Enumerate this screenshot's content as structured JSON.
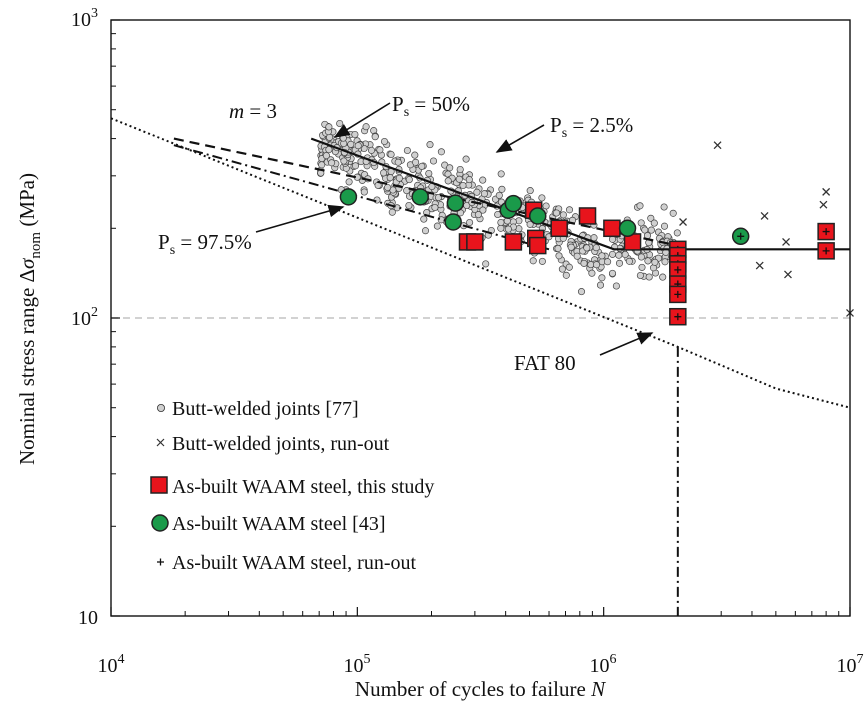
{
  "chart_data": {
    "type": "scatter",
    "x_scale": "log",
    "y_scale": "log",
    "xlim": [
      10000,
      10000000
    ],
    "ylim": [
      10,
      1000
    ],
    "grid": "dashed horizontal reference line at 100 MPa",
    "legend_position": "bottom-left",
    "x_ticks": [
      {
        "value": 10000,
        "base": "10",
        "exp": "4"
      },
      {
        "value": 100000,
        "base": "10",
        "exp": "5"
      },
      {
        "value": 1000000,
        "base": "10",
        "exp": "6"
      },
      {
        "value": 10000000,
        "base": "10",
        "exp": "7"
      }
    ],
    "y_ticks": [
      {
        "value": 10,
        "base": "10",
        "exp": ""
      },
      {
        "value": 100,
        "base": "10",
        "exp": "2"
      },
      {
        "value": 1000,
        "base": "10",
        "exp": "3"
      }
    ],
    "xlabel": {
      "main": "Number of cycles to failure ",
      "var": "N"
    },
    "ylabel": {
      "prefix": "Nominal stress range Δ",
      "sigma": "σ",
      "sub": "nom",
      "suffix": " (MPa)"
    },
    "annotations": {
      "slope": {
        "var": "m",
        "rest": " = 3"
      },
      "ps50": {
        "p": "P",
        "s": "s",
        "rest": " = 50%"
      },
      "ps25": {
        "p": "P",
        "s": "s",
        "rest": " = 2.5%"
      },
      "ps975": {
        "p": "P",
        "s": "s",
        "rest": " = 97.5%"
      },
      "fat": "FAT 80"
    },
    "series": [
      {
        "name": "Butt-welded joints [77]",
        "marker": "circle-small",
        "color": "#d0d0d0",
        "points_note": "dense cloud approx. 7e4–3e6 cycles, 95–440 MPa"
      },
      {
        "name": "Butt-welded joints, run-out",
        "marker": "x",
        "color": "#333333",
        "points": [
          [
            2100000,
            210
          ],
          [
            2900000,
            380
          ],
          [
            4300000,
            150
          ],
          [
            4500000,
            220
          ],
          [
            5500000,
            180
          ],
          [
            5600000,
            140
          ],
          [
            7800000,
            240
          ],
          [
            8000000,
            265
          ],
          [
            10000000,
            104
          ]
        ]
      },
      {
        "name": "As-built WAAM steel, this study",
        "marker": "square",
        "color": "#e8141c",
        "points": [
          [
            280000,
            180
          ],
          [
            300000,
            180
          ],
          [
            430000,
            180
          ],
          [
            520000,
            230
          ],
          [
            530000,
            185
          ],
          [
            540000,
            175
          ],
          [
            660000,
            200
          ],
          [
            860000,
            220
          ],
          [
            1080000,
            200
          ],
          [
            1310000,
            180
          ]
        ]
      },
      {
        "name": "As-built WAAM steel [43]",
        "marker": "circle",
        "color": "#1a9a4a",
        "points": [
          [
            92000,
            255
          ],
          [
            180000,
            255
          ],
          [
            245000,
            210
          ],
          [
            250000,
            243
          ],
          [
            410000,
            230
          ],
          [
            430000,
            242
          ],
          [
            540000,
            220
          ],
          [
            1250000,
            200
          ]
        ]
      },
      {
        "name": "As-built WAAM steel, run-out",
        "marker": "plus-in-symbol",
        "color": "#111111",
        "points": [
          [
            2000000,
            170
          ],
          [
            2000000,
            162
          ],
          [
            2000000,
            152
          ],
          [
            2000000,
            145
          ],
          [
            2000000,
            130
          ],
          [
            2000000,
            120
          ],
          [
            2000000,
            101
          ],
          [
            3600000,
            188
          ],
          [
            8000000,
            195
          ],
          [
            8000000,
            168
          ]
        ]
      }
    ],
    "curves": [
      {
        "name": "m = 3 mean curve (P_s = 50%)",
        "style": "solid",
        "points": [
          [
            65000,
            400
          ],
          [
            1100000,
            170
          ],
          [
            10000000,
            170
          ]
        ]
      },
      {
        "name": "P_s = 2.5%",
        "style": "dashed",
        "points": [
          [
            18000,
            400
          ],
          [
            2000000,
            175
          ]
        ]
      },
      {
        "name": "P_s = 97.5%",
        "style": "dash-dot",
        "points": [
          [
            18000,
            380
          ],
          [
            600000,
            170
          ]
        ]
      },
      {
        "name": "FAT 80",
        "style": "dotted",
        "points": [
          [
            10000,
            468
          ],
          [
            2000000,
            80
          ],
          [
            5000000,
            58
          ],
          [
            10000000,
            50
          ]
        ]
      }
    ],
    "vertical_line": {
      "x": 2000000,
      "style": "dash-dot",
      "from_y": 10,
      "to_y": 80
    }
  }
}
